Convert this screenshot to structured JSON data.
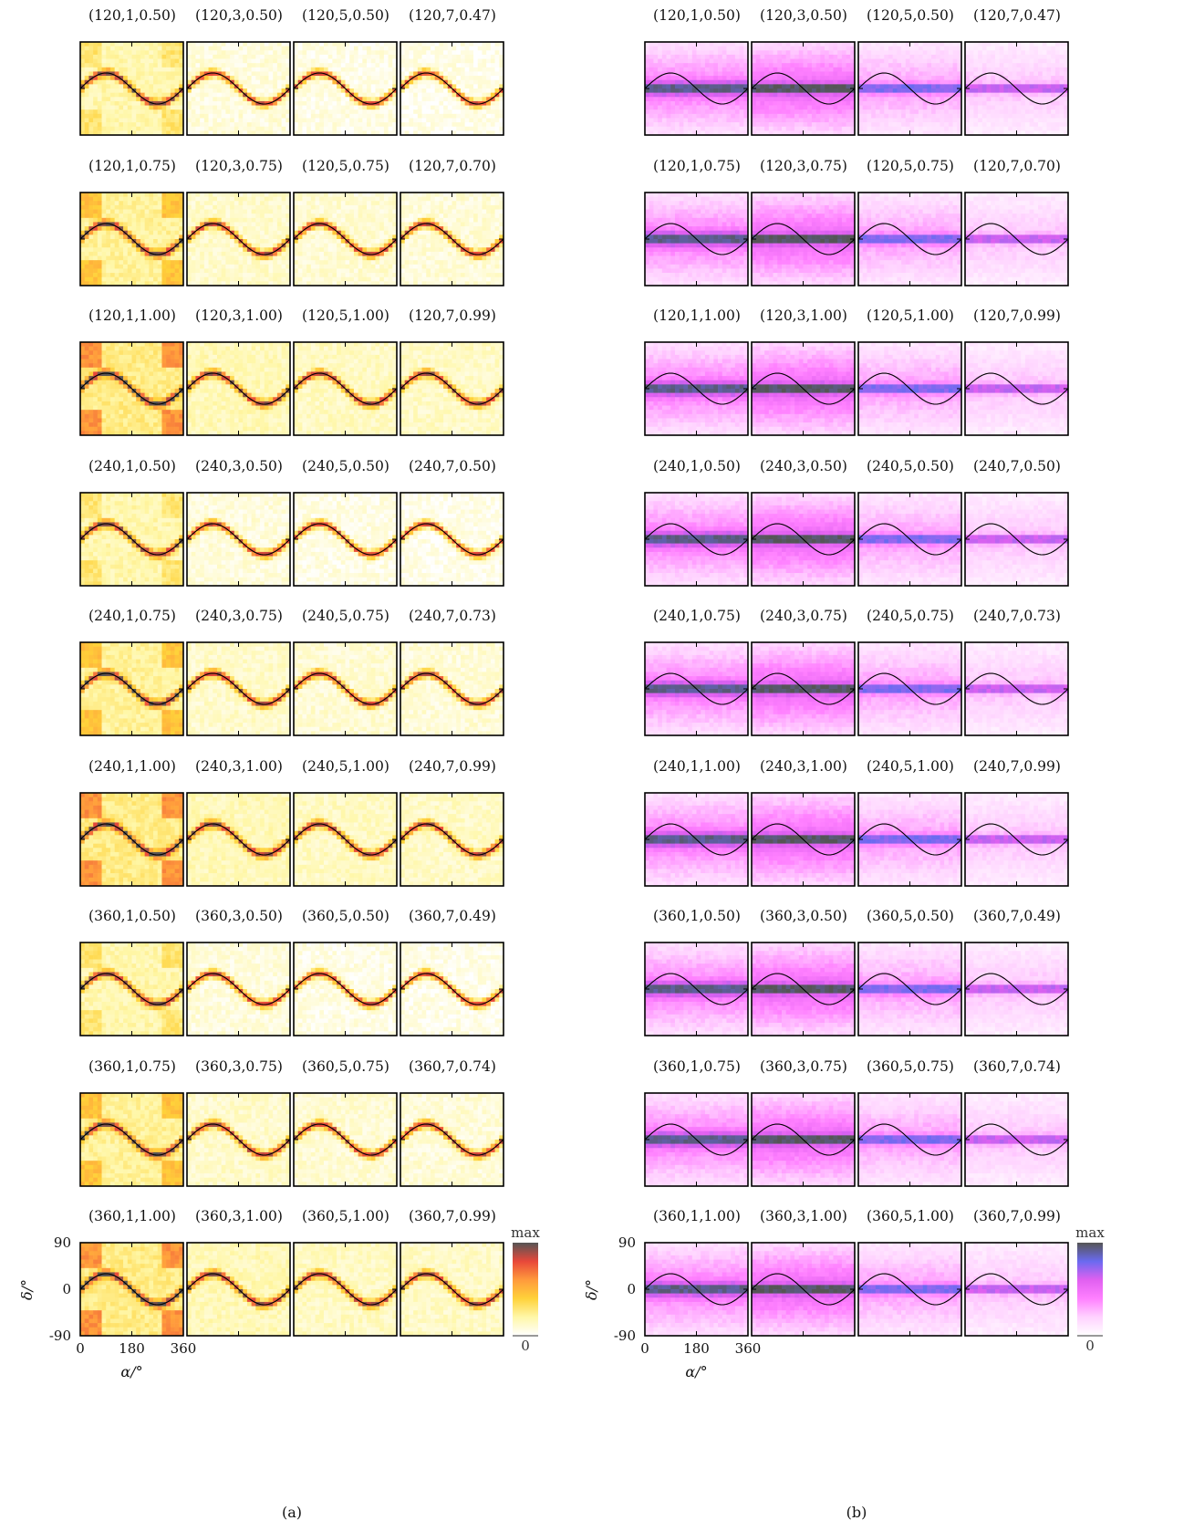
{
  "chart_data": [
    {
      "type": "heatmap",
      "panel_label": "(a)",
      "colormap": [
        "#ffffff",
        "#fff7a8",
        "#ffd23a",
        "#ff9a3c",
        "#e8483a",
        "#555555"
      ],
      "xlabel": "α/°",
      "ylabel": "δ/°",
      "xticks": [
        0,
        180,
        360
      ],
      "yticks": [
        90,
        0,
        -90
      ],
      "xlim": [
        0,
        360
      ],
      "ylim": [
        -90,
        90
      ],
      "overlay_curve": "sinusoid",
      "colorbar": {
        "max_label": "max",
        "min_label": "0"
      },
      "panels": [
        [
          "(120,1,0.50)",
          "(120,3,0.50)",
          "(120,5,0.50)",
          "(120,7,0.47)"
        ],
        [
          "(120,1,0.75)",
          "(120,3,0.75)",
          "(120,5,0.75)",
          "(120,7,0.70)"
        ],
        [
          "(120,1,1.00)",
          "(120,3,1.00)",
          "(120,5,1.00)",
          "(120,7,0.99)"
        ],
        [
          "(240,1,0.50)",
          "(240,3,0.50)",
          "(240,5,0.50)",
          "(240,7,0.50)"
        ],
        [
          "(240,1,0.75)",
          "(240,3,0.75)",
          "(240,5,0.75)",
          "(240,7,0.73)"
        ],
        [
          "(240,1,1.00)",
          "(240,3,1.00)",
          "(240,5,1.00)",
          "(240,7,0.99)"
        ],
        [
          "(360,1,0.50)",
          "(360,3,0.50)",
          "(360,5,0.50)",
          "(360,7,0.49)"
        ],
        [
          "(360,1,0.75)",
          "(360,3,0.75)",
          "(360,5,0.75)",
          "(360,7,0.74)"
        ],
        [
          "(360,1,1.00)",
          "(360,3,1.00)",
          "(360,5,1.00)",
          "(360,7,0.99)"
        ]
      ]
    },
    {
      "type": "heatmap",
      "panel_label": "(b)",
      "colormap": [
        "#ffffff",
        "#ffd2ff",
        "#ff80ff",
        "#e060f0",
        "#6a6af0",
        "#555555"
      ],
      "xlabel": "α/°",
      "ylabel": "δ/°",
      "xticks": [
        0,
        180,
        360
      ],
      "yticks": [
        90,
        0,
        -90
      ],
      "xlim": [
        0,
        360
      ],
      "ylim": [
        -90,
        90
      ],
      "overlay_curve": "sinusoid",
      "colorbar": {
        "max_label": "max",
        "min_label": "0"
      },
      "panels": [
        [
          "(120,1,0.50)",
          "(120,3,0.50)",
          "(120,5,0.50)",
          "(120,7,0.47)"
        ],
        [
          "(120,1,0.75)",
          "(120,3,0.75)",
          "(120,5,0.75)",
          "(120,7,0.70)"
        ],
        [
          "(120,1,1.00)",
          "(120,3,1.00)",
          "(120,5,1.00)",
          "(120,7,0.99)"
        ],
        [
          "(240,1,0.50)",
          "(240,3,0.50)",
          "(240,5,0.50)",
          "(240,7,0.50)"
        ],
        [
          "(240,1,0.75)",
          "(240,3,0.75)",
          "(240,5,0.75)",
          "(240,7,0.73)"
        ],
        [
          "(240,1,1.00)",
          "(240,3,1.00)",
          "(240,5,1.00)",
          "(240,7,0.99)"
        ],
        [
          "(360,1,0.50)",
          "(360,3,0.50)",
          "(360,5,0.50)",
          "(360,7,0.49)"
        ],
        [
          "(360,1,0.75)",
          "(360,3,0.75)",
          "(360,5,0.75)",
          "(360,7,0.74)"
        ],
        [
          "(360,1,1.00)",
          "(360,3,1.00)",
          "(360,5,1.00)",
          "(360,7,0.99)"
        ]
      ]
    }
  ]
}
